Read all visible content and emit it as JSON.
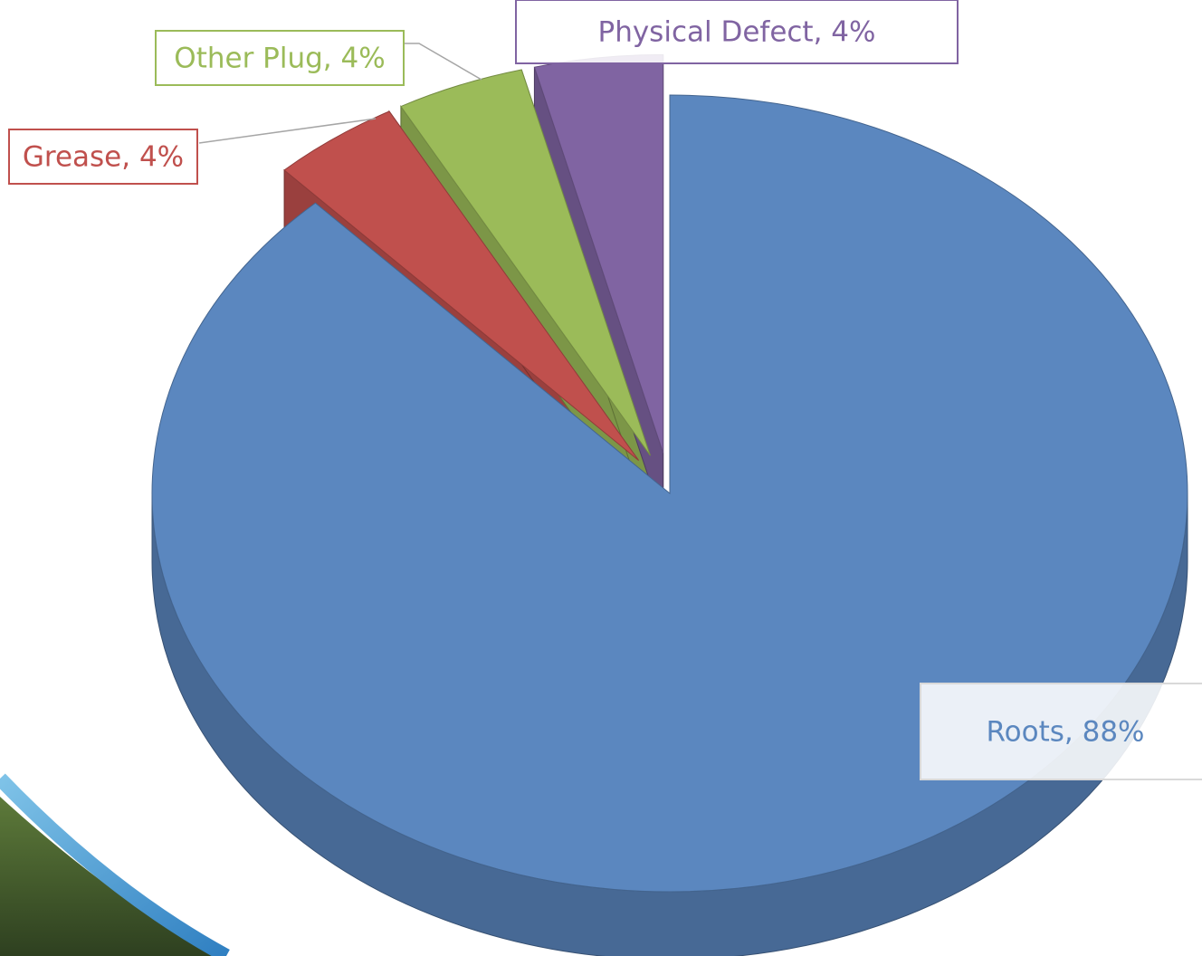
{
  "chart_data": {
    "type": "pie",
    "categories": [
      "Roots",
      "Grease",
      "Other Plug",
      "Physical Defect"
    ],
    "values": [
      88,
      4,
      4,
      4
    ],
    "value_labels": [
      "Roots, 88%",
      "Grease, 4%",
      "Other Plug, 4%",
      "Physical Defect, 4%"
    ],
    "colors": [
      "#5b87bf",
      "#c0504d",
      "#9bbb59",
      "#8064a2"
    ]
  }
}
